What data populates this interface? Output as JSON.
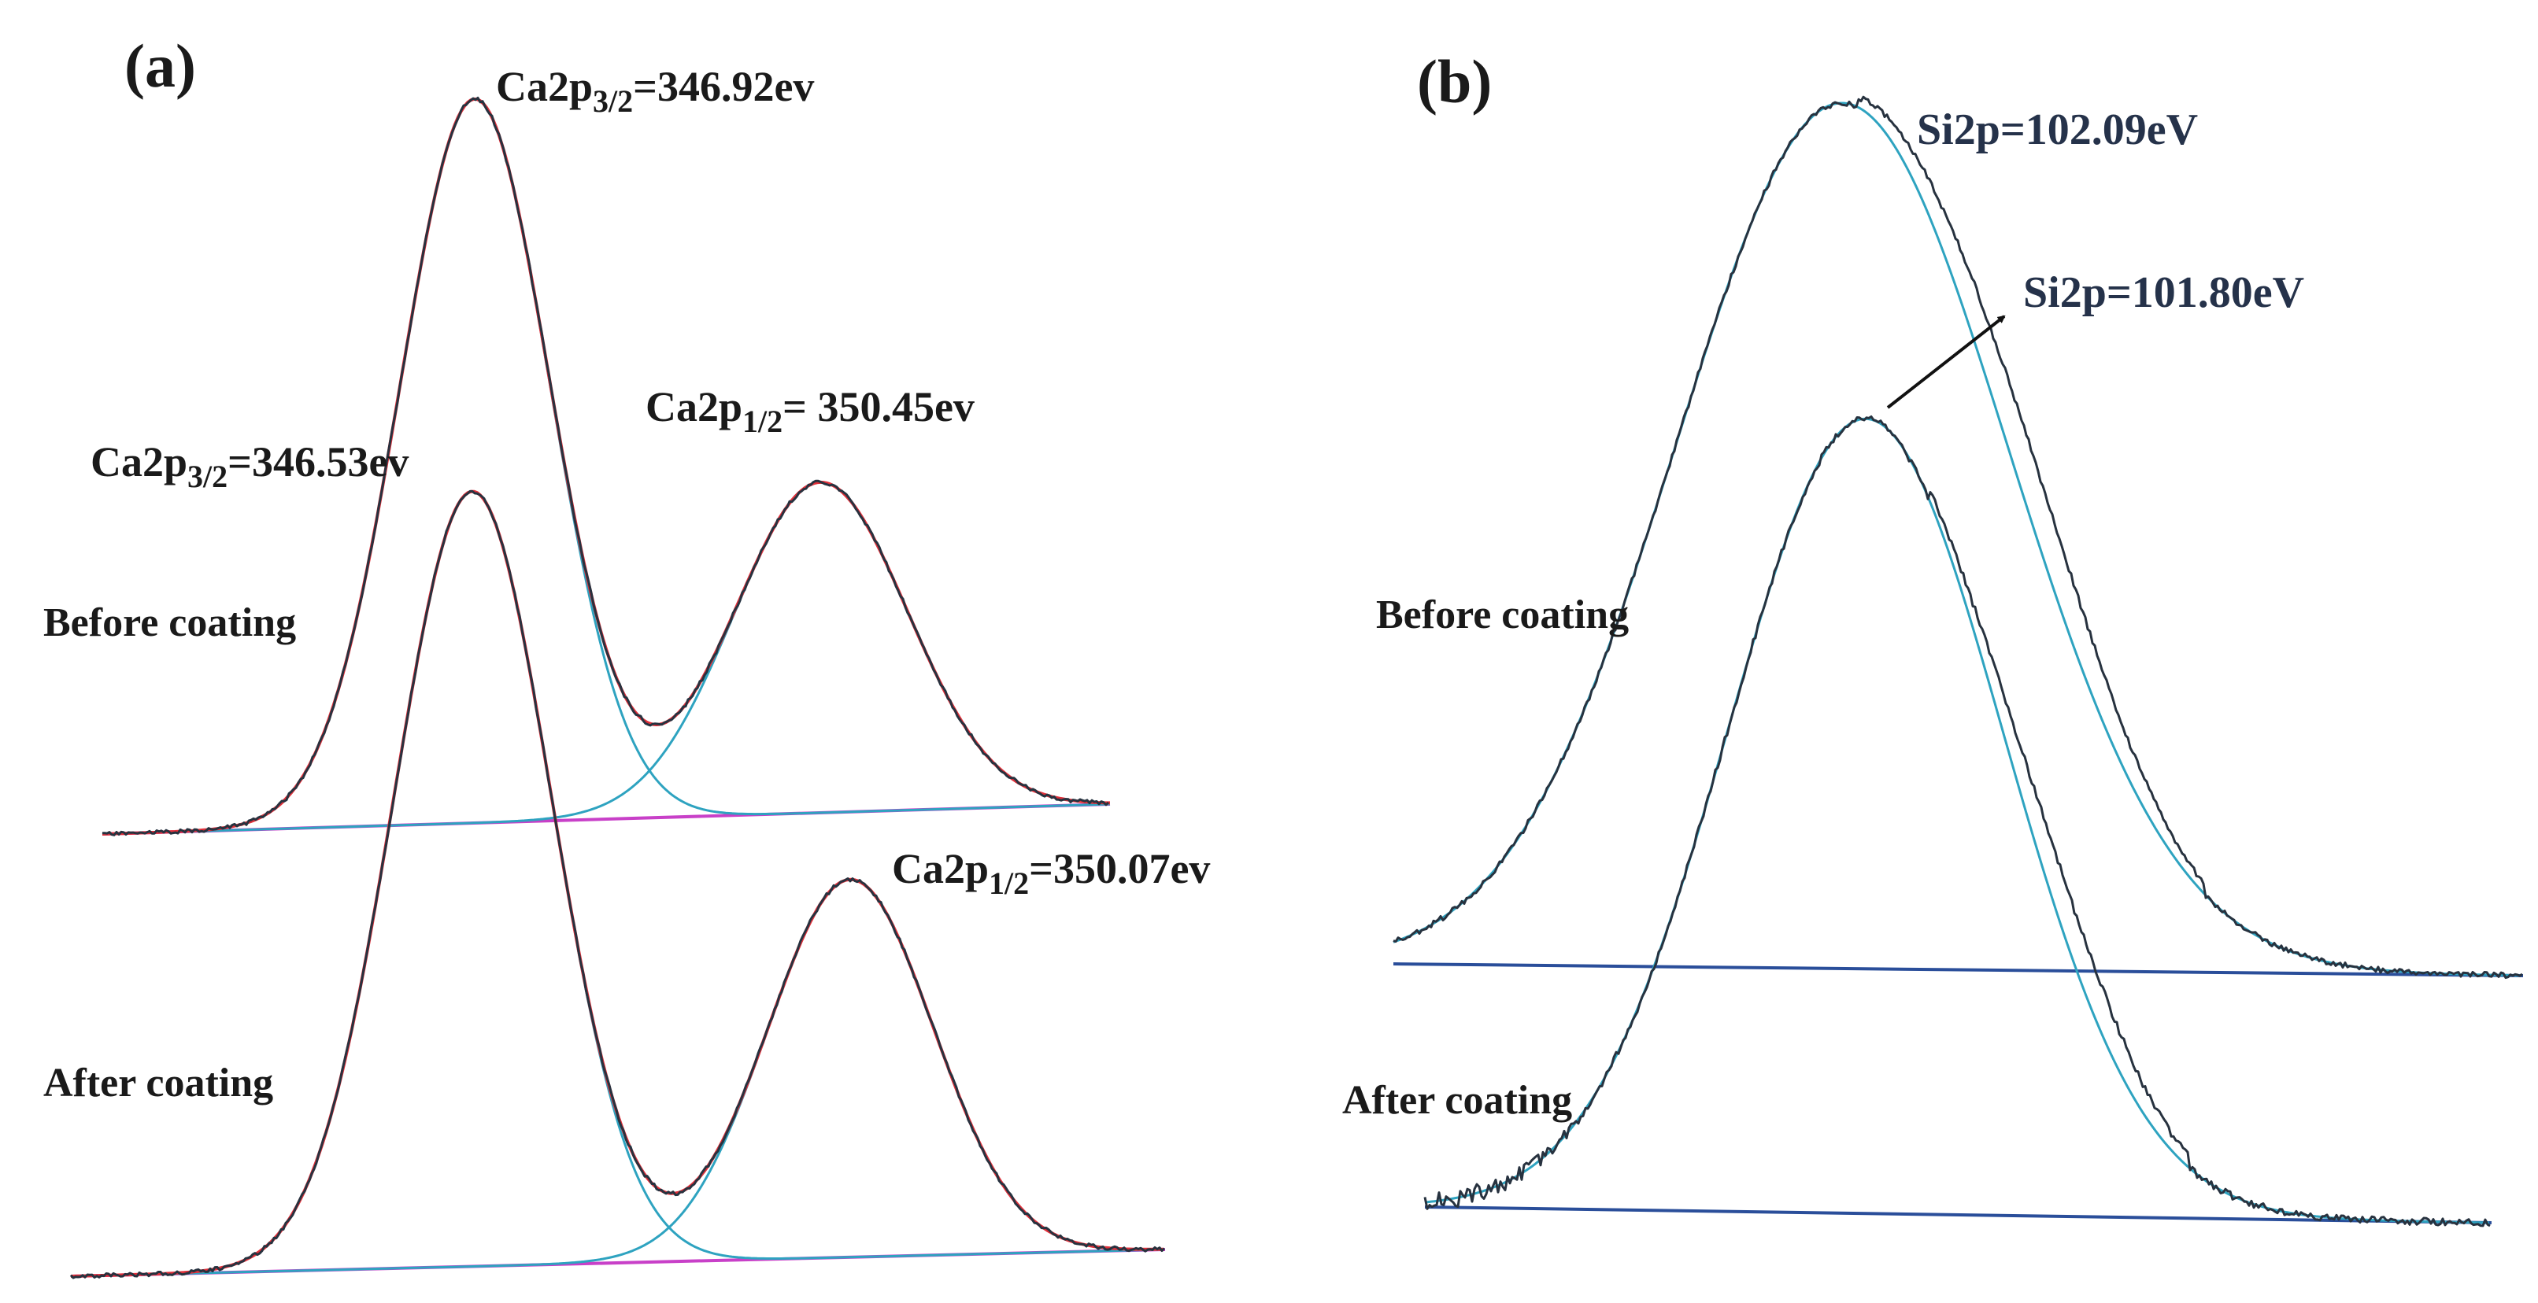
{
  "figure": {
    "panels": [
      {
        "id": "a",
        "label": "(a)",
        "element": "Ca2p",
        "conditions": {
          "before": "Before coating",
          "after": "After coating"
        }
      },
      {
        "id": "b",
        "label": "(b)",
        "element": "Si2p",
        "conditions": {
          "before": "Before coating",
          "after": "After coating"
        }
      }
    ]
  },
  "colors": {
    "raw": "#27323f",
    "envelope": "#e0303a",
    "component": "#2ea3c0",
    "baseline_a": "#c840c8",
    "baseline_b": "#2a4e9a",
    "text": "#1a1a1a"
  },
  "chart_data": [
    {
      "type": "line",
      "title": "(a)",
      "xlabel": "",
      "ylabel": "",
      "grid": false,
      "series": [
        {
          "name": "Before coating",
          "curve": "raw + fit",
          "peaks": [
            {
              "label": "Ca2p3/2",
              "binding_energy_ev": 346.92,
              "prefix": "Ca",
              "core": "2p",
              "sub": "3/2",
              "value_text": "=346.92ev"
            },
            {
              "label": "Ca2p1/2",
              "binding_energy_ev": 350.45,
              "prefix": "Ca",
              "core": "2p",
              "sub": "1/2",
              "value_text": "= 350.45ev"
            }
          ]
        },
        {
          "name": "After coating",
          "curve": "raw + fit",
          "peaks": [
            {
              "label": "Ca2p3/2",
              "binding_energy_ev": 346.53,
              "prefix": "Ca",
              "core": "2p",
              "sub": "3/2",
              "value_text": "=346.53ev"
            },
            {
              "label": "Ca2p1/2",
              "binding_energy_ev": 350.07,
              "prefix": "Ca",
              "core": "2p",
              "sub": "1/2",
              "value_text": "=350.07ev"
            }
          ]
        }
      ]
    },
    {
      "type": "line",
      "title": "(b)",
      "xlabel": "",
      "ylabel": "",
      "grid": false,
      "series": [
        {
          "name": "Before coating",
          "curve": "raw + fit",
          "peaks": [
            {
              "label": "Si2p",
              "binding_energy_ev": 102.09,
              "text": "Si2p=102.09eV"
            }
          ]
        },
        {
          "name": "After coating",
          "curve": "raw + fit",
          "peaks": [
            {
              "label": "Si2p",
              "binding_energy_ev": 101.8,
              "text": "Si2p=101.80eV"
            }
          ]
        }
      ]
    }
  ]
}
